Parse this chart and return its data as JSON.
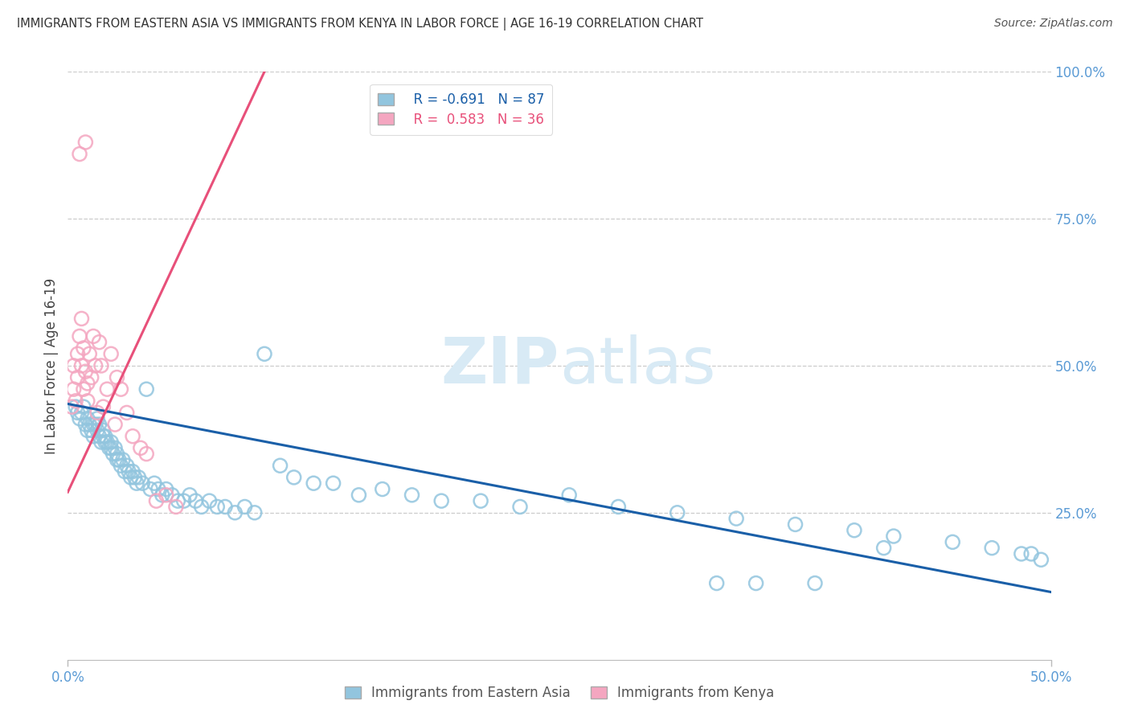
{
  "title": "IMMIGRANTS FROM EASTERN ASIA VS IMMIGRANTS FROM KENYA IN LABOR FORCE | AGE 16-19 CORRELATION CHART",
  "source": "Source: ZipAtlas.com",
  "ylabel": "In Labor Force | Age 16-19",
  "xlim": [
    0.0,
    0.5
  ],
  "ylim": [
    0.0,
    1.0
  ],
  "xtick_labels": [
    "0.0%",
    "50.0%"
  ],
  "xtick_positions": [
    0.0,
    0.5
  ],
  "right_ytick_labels": [
    "25.0%",
    "50.0%",
    "75.0%",
    "100.0%"
  ],
  "right_ytick_positions": [
    0.25,
    0.5,
    0.75,
    1.0
  ],
  "blue_r": -0.691,
  "blue_n": 87,
  "pink_r": 0.583,
  "pink_n": 36,
  "blue_color": "#92C5DE",
  "pink_color": "#F4A6C0",
  "blue_line_color": "#1A5FA8",
  "pink_line_color": "#E8507A",
  "axis_color": "#5B9BD5",
  "watermark_color": "#D8EAF5",
  "blue_line_x": [
    0.0,
    0.5
  ],
  "blue_line_y": [
    0.435,
    0.115
  ],
  "pink_line_x": [
    0.0,
    0.1
  ],
  "pink_line_y": [
    0.285,
    1.0
  ],
  "blue_scatter_x": [
    0.004,
    0.005,
    0.006,
    0.007,
    0.008,
    0.009,
    0.01,
    0.01,
    0.011,
    0.012,
    0.013,
    0.013,
    0.014,
    0.015,
    0.015,
    0.016,
    0.016,
    0.017,
    0.018,
    0.018,
    0.019,
    0.019,
    0.02,
    0.021,
    0.022,
    0.022,
    0.023,
    0.024,
    0.025,
    0.025,
    0.026,
    0.027,
    0.028,
    0.029,
    0.03,
    0.031,
    0.032,
    0.033,
    0.034,
    0.035,
    0.036,
    0.038,
    0.04,
    0.042,
    0.044,
    0.046,
    0.048,
    0.05,
    0.053,
    0.056,
    0.059,
    0.062,
    0.065,
    0.068,
    0.072,
    0.076,
    0.08,
    0.085,
    0.09,
    0.095,
    0.1,
    0.108,
    0.115,
    0.125,
    0.135,
    0.148,
    0.16,
    0.175,
    0.19,
    0.21,
    0.23,
    0.255,
    0.28,
    0.31,
    0.34,
    0.37,
    0.4,
    0.42,
    0.45,
    0.47,
    0.485,
    0.49,
    0.495,
    0.33,
    0.35,
    0.38,
    0.415
  ],
  "blue_scatter_y": [
    0.43,
    0.42,
    0.41,
    0.42,
    0.43,
    0.4,
    0.39,
    0.41,
    0.4,
    0.39,
    0.4,
    0.38,
    0.4,
    0.39,
    0.41,
    0.38,
    0.4,
    0.37,
    0.38,
    0.39,
    0.37,
    0.38,
    0.37,
    0.36,
    0.36,
    0.37,
    0.35,
    0.36,
    0.35,
    0.34,
    0.34,
    0.33,
    0.34,
    0.32,
    0.33,
    0.32,
    0.31,
    0.32,
    0.31,
    0.3,
    0.31,
    0.3,
    0.46,
    0.29,
    0.3,
    0.29,
    0.28,
    0.29,
    0.28,
    0.27,
    0.27,
    0.28,
    0.27,
    0.26,
    0.27,
    0.26,
    0.26,
    0.25,
    0.26,
    0.25,
    0.52,
    0.33,
    0.31,
    0.3,
    0.3,
    0.28,
    0.29,
    0.28,
    0.27,
    0.27,
    0.26,
    0.28,
    0.26,
    0.25,
    0.24,
    0.23,
    0.22,
    0.21,
    0.2,
    0.19,
    0.18,
    0.18,
    0.17,
    0.13,
    0.13,
    0.13,
    0.19
  ],
  "pink_scatter_x": [
    0.002,
    0.003,
    0.003,
    0.004,
    0.005,
    0.005,
    0.006,
    0.007,
    0.007,
    0.008,
    0.008,
    0.009,
    0.01,
    0.01,
    0.011,
    0.012,
    0.013,
    0.014,
    0.015,
    0.016,
    0.017,
    0.018,
    0.02,
    0.022,
    0.024,
    0.027,
    0.03,
    0.033,
    0.037,
    0.04,
    0.045,
    0.05,
    0.055,
    0.025,
    0.009,
    0.006
  ],
  "pink_scatter_y": [
    0.43,
    0.46,
    0.5,
    0.44,
    0.48,
    0.52,
    0.55,
    0.58,
    0.5,
    0.53,
    0.46,
    0.49,
    0.44,
    0.47,
    0.52,
    0.48,
    0.55,
    0.5,
    0.42,
    0.54,
    0.5,
    0.43,
    0.46,
    0.52,
    0.4,
    0.46,
    0.42,
    0.38,
    0.36,
    0.35,
    0.27,
    0.28,
    0.26,
    0.48,
    0.88,
    0.86
  ],
  "legend_blue_label": "Immigrants from Eastern Asia",
  "legend_pink_label": "Immigrants from Kenya"
}
